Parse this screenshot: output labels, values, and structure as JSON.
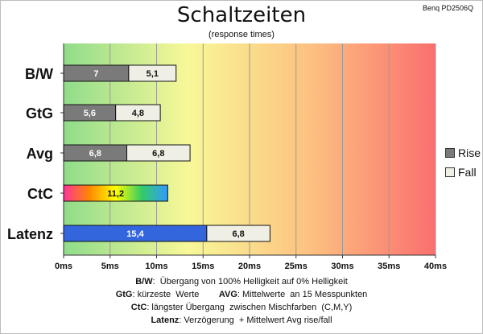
{
  "header": {
    "title": "Schaltzeiten",
    "subtitle": "(response times)",
    "model": "Benq PD2506Q"
  },
  "chart_data": {
    "type": "bar",
    "orientation": "horizontal",
    "stacked": true,
    "categories": [
      "B/W",
      "GtG",
      "Avg",
      "CtC",
      "Latenz"
    ],
    "series": [
      {
        "name": "Rise",
        "values": [
          7,
          5.6,
          6.8,
          11.2,
          15.4
        ],
        "labels": [
          "7",
          "5,6",
          "6,8",
          "11,2",
          "15,4"
        ]
      },
      {
        "name": "Fall",
        "values": [
          5.1,
          4.8,
          6.8,
          null,
          6.8
        ],
        "labels": [
          "5,1",
          "4,8",
          "6,8",
          "",
          "6,8"
        ]
      }
    ],
    "xlim": [
      0,
      40
    ],
    "xticks": [
      "0ms",
      "5ms",
      "10ms",
      "15ms",
      "20ms",
      "25ms",
      "30ms",
      "35ms",
      "40ms"
    ],
    "xtick_values": [
      0,
      5,
      10,
      15,
      20,
      25,
      30,
      35,
      40
    ],
    "grid": true,
    "legend_position": "right",
    "background_gradient": [
      "#8fdc8a",
      "#f8f898",
      "#fdc080",
      "#fa6f6f"
    ],
    "bar_colors": {
      "rise": "#7a7a7a",
      "fall": "#efefe6",
      "latenz_rise": "#3366dd",
      "ctc_gradient": [
        "#ff3399",
        "#ff8800",
        "#ffff00",
        "#33cc66",
        "#3399ff"
      ]
    }
  },
  "legend": {
    "rise_label": "Rise",
    "fall_label": "Fall",
    "rise_color": "#7a7a7a",
    "fall_color": "#efefe6"
  },
  "notes": {
    "bw_key": "B/W",
    "bw_text": ":  Übergang von 100% Helligkeit auf 0% Helligkeit",
    "gtg_key": "GtG",
    "gtg_text": ": kürzeste  Werte        ",
    "avg_key": "AVG",
    "avg_text": ": Mittelwerte  an 15 Messpunkten",
    "ctc_key": "CtC",
    "ctc_text": ": längster Übergang  zwischen Mischfarben  (C,M,Y)",
    "latenz_key": "Latenz",
    "latenz_text": ": Verzögerung  + Mittelwert Avg rise/fall"
  }
}
